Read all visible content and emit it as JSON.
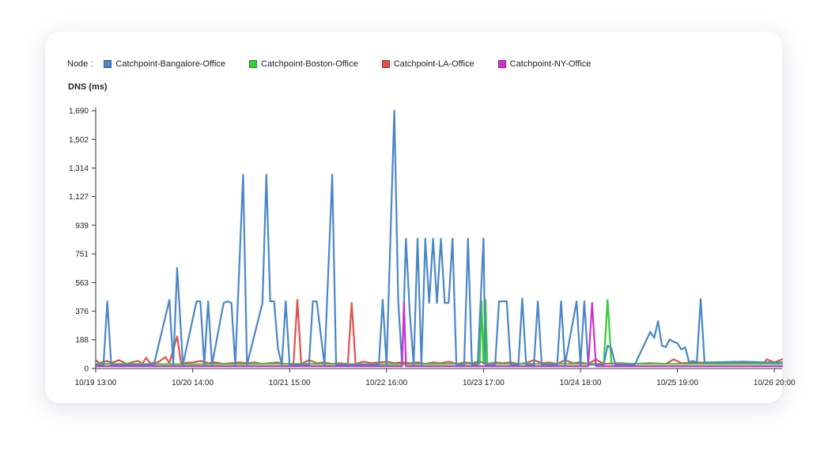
{
  "legend": {
    "title": "Node :",
    "items": [
      {
        "label": "Catchpoint-Bangalore-Office",
        "color": "#4a86c8"
      },
      {
        "label": "Catchpoint-Boston-Office",
        "color": "#33cc33"
      },
      {
        "label": "Catchpoint-LA-Office",
        "color": "#e0504a"
      },
      {
        "label": "Catchpoint-NY-Office",
        "color": "#cc33cc"
      }
    ]
  },
  "chart_data": {
    "type": "line",
    "title": "",
    "xlabel": "",
    "ylabel": "DNS (ms)",
    "ylim": [
      0,
      1690
    ],
    "xlim": [
      "10/19 13:00",
      "10/26 22:00"
    ],
    "y_ticks": [
      0,
      188,
      376,
      563,
      751,
      939,
      1127,
      1314,
      1502,
      1690
    ],
    "y_tick_labels": [
      "0",
      "188",
      "376",
      "563",
      "751",
      "939",
      "1,127",
      "1,314",
      "1,502",
      "1,690"
    ],
    "x_ticks": [
      "10/19 13:00",
      "10/20 14:00",
      "10/21 15:00",
      "10/22 16:00",
      "10/23 17:00",
      "10/24 18:00",
      "10/25 19:00",
      "10/26 20:00"
    ],
    "legend_position": "top",
    "grid": false,
    "series": [
      {
        "name": "Catchpoint-Bangalore-Office",
        "color": "#4a86c8",
        "points": [
          [
            "10/19 13:00",
            25
          ],
          [
            "10/19 15:00",
            20
          ],
          [
            "10/19 16:00",
            440
          ],
          [
            "10/19 17:00",
            25
          ],
          [
            "10/19 22:00",
            25
          ],
          [
            "10/20 04:00",
            25
          ],
          [
            "10/20 08:00",
            450
          ],
          [
            "10/20 09:00",
            25
          ],
          [
            "10/20 10:00",
            660
          ],
          [
            "10/20 11:30",
            25
          ],
          [
            "10/20 15:00",
            440
          ],
          [
            "10/20 16:00",
            440
          ],
          [
            "10/20 17:00",
            25
          ],
          [
            "10/20 18:00",
            440
          ],
          [
            "10/20 19:00",
            25
          ],
          [
            "10/20 22:00",
            430
          ],
          [
            "10/20 23:00",
            440
          ],
          [
            "10/21 00:00",
            430
          ],
          [
            "10/21 01:00",
            25
          ],
          [
            "10/21 03:00",
            1270
          ],
          [
            "10/21 04:00",
            25
          ],
          [
            "10/21 08:00",
            430
          ],
          [
            "10/21 09:00",
            1270
          ],
          [
            "10/21 10:00",
            440
          ],
          [
            "10/21 11:00",
            440
          ],
          [
            "10/21 12:00",
            130
          ],
          [
            "10/21 13:00",
            25
          ],
          [
            "10/21 14:00",
            440
          ],
          [
            "10/21 15:00",
            25
          ],
          [
            "10/21 20:00",
            25
          ],
          [
            "10/21 21:00",
            440
          ],
          [
            "10/21 22:00",
            440
          ],
          [
            "10/22 00:00",
            25
          ],
          [
            "10/22 02:00",
            1270
          ],
          [
            "10/22 03:00",
            25
          ],
          [
            "10/22 10:00",
            25
          ],
          [
            "10/22 14:00",
            25
          ],
          [
            "10/22 15:00",
            450
          ],
          [
            "10/22 16:00",
            25
          ],
          [
            "10/22 18:00",
            1690
          ],
          [
            "10/22 19:00",
            450
          ],
          [
            "10/22 20:00",
            25
          ],
          [
            "10/22 21:00",
            850
          ],
          [
            "10/22 22:00",
            360
          ],
          [
            "10/22 23:00",
            25
          ],
          [
            "10/23 00:00",
            850
          ],
          [
            "10/23 01:00",
            25
          ],
          [
            "10/23 02:00",
            850
          ],
          [
            "10/23 03:00",
            430
          ],
          [
            "10/23 04:00",
            850
          ],
          [
            "10/23 05:00",
            430
          ],
          [
            "10/23 06:00",
            850
          ],
          [
            "10/23 07:00",
            430
          ],
          [
            "10/23 08:00",
            430
          ],
          [
            "10/23 09:00",
            850
          ],
          [
            "10/23 10:00",
            25
          ],
          [
            "10/23 12:00",
            25
          ],
          [
            "10/23 13:00",
            850
          ],
          [
            "10/23 14:00",
            25
          ],
          [
            "10/23 15:30",
            25
          ],
          [
            "10/23 17:00",
            850
          ],
          [
            "10/23 17:30",
            25
          ],
          [
            "10/23 18:00",
            25
          ],
          [
            "10/23 20:00",
            25
          ],
          [
            "10/23 21:00",
            440
          ],
          [
            "10/23 22:00",
            440
          ],
          [
            "10/23 23:00",
            440
          ],
          [
            "10/24 00:00",
            25
          ],
          [
            "10/24 02:00",
            25
          ],
          [
            "10/24 03:00",
            460
          ],
          [
            "10/24 04:00",
            25
          ],
          [
            "10/24 06:00",
            25
          ],
          [
            "10/24 07:00",
            440
          ],
          [
            "10/24 08:00",
            25
          ],
          [
            "10/24 12:00",
            25
          ],
          [
            "10/24 13:00",
            440
          ],
          [
            "10/24 14:00",
            25
          ],
          [
            "10/24 17:00",
            440
          ],
          [
            "10/24 18:00",
            25
          ],
          [
            "10/24 19:00",
            440
          ],
          [
            "10/24 20:00",
            25
          ],
          [
            "10/24 22:00",
            25
          ],
          [
            "10/25 00:00",
            25
          ],
          [
            "10/25 01:00",
            150
          ],
          [
            "10/25 02:00",
            130
          ],
          [
            "10/25 03:00",
            25
          ],
          [
            "10/25 08:00",
            25
          ],
          [
            "10/25 12:00",
            240
          ],
          [
            "10/25 13:00",
            200
          ],
          [
            "10/25 14:00",
            310
          ],
          [
            "10/25 15:00",
            150
          ],
          [
            "10/25 16:00",
            140
          ],
          [
            "10/25 17:00",
            190
          ],
          [
            "10/25 18:00",
            175
          ],
          [
            "10/25 19:00",
            165
          ],
          [
            "10/25 20:00",
            125
          ],
          [
            "10/25 21:00",
            140
          ],
          [
            "10/25 22:00",
            40
          ],
          [
            "10/25 23:00",
            50
          ],
          [
            "10/26 00:00",
            40
          ],
          [
            "10/26 01:00",
            455
          ],
          [
            "10/26 02:00",
            40
          ],
          [
            "10/26 03:00",
            40
          ],
          [
            "10/26 12:00",
            45
          ],
          [
            "10/26 18:00",
            40
          ],
          [
            "10/26 19:00",
            40
          ],
          [
            "10/26 22:00",
            40
          ]
        ]
      },
      {
        "name": "Catchpoint-Boston-Office",
        "color": "#33cc33",
        "points": [
          [
            "10/19 13:00",
            30
          ],
          [
            "10/20 13:00",
            28
          ],
          [
            "10/21 13:00",
            30
          ],
          [
            "10/22 13:00",
            28
          ],
          [
            "10/23 13:00",
            30
          ],
          [
            "10/23 16:00",
            30
          ],
          [
            "10/23 16:30",
            440
          ],
          [
            "10/23 17:00",
            30
          ],
          [
            "10/23 17:30",
            450
          ],
          [
            "10/23 18:00",
            30
          ],
          [
            "10/24 13:00",
            30
          ],
          [
            "10/24 23:00",
            30
          ],
          [
            "10/25 00:00",
            30
          ],
          [
            "10/25 01:00",
            450
          ],
          [
            "10/25 02:00",
            30
          ],
          [
            "10/25 13:00",
            30
          ],
          [
            "10/26 13:00",
            30
          ],
          [
            "10/26 22:00",
            30
          ]
        ]
      },
      {
        "name": "Catchpoint-LA-Office",
        "color": "#e0504a",
        "points": [
          [
            "10/19 13:00",
            55
          ],
          [
            "10/19 14:00",
            35
          ],
          [
            "10/19 16:00",
            50
          ],
          [
            "10/19 17:00",
            35
          ],
          [
            "10/19 19:00",
            55
          ],
          [
            "10/19 21:00",
            30
          ],
          [
            "10/19 23:00",
            45
          ],
          [
            "10/20 00:00",
            50
          ],
          [
            "10/20 01:00",
            30
          ],
          [
            "10/20 02:00",
            70
          ],
          [
            "10/20 03:00",
            35
          ],
          [
            "10/20 05:00",
            40
          ],
          [
            "10/20 07:00",
            75
          ],
          [
            "10/20 08:00",
            35
          ],
          [
            "10/20 10:00",
            210
          ],
          [
            "10/20 11:00",
            35
          ],
          [
            "10/20 14:00",
            40
          ],
          [
            "10/20 16:00",
            50
          ],
          [
            "10/20 18:00",
            35
          ],
          [
            "10/20 20:00",
            40
          ],
          [
            "10/20 22:00",
            30
          ],
          [
            "10/21 00:00",
            35
          ],
          [
            "10/21 02:00",
            40
          ],
          [
            "10/21 04:00",
            35
          ],
          [
            "10/21 06:00",
            40
          ],
          [
            "10/21 08:00",
            30
          ],
          [
            "10/21 10:00",
            35
          ],
          [
            "10/21 12:00",
            40
          ],
          [
            "10/21 13:00",
            30
          ],
          [
            "10/21 16:00",
            30
          ],
          [
            "10/21 17:00",
            450
          ],
          [
            "10/21 18:00",
            30
          ],
          [
            "10/21 20:00",
            55
          ],
          [
            "10/21 22:00",
            35
          ],
          [
            "10/22 00:00",
            40
          ],
          [
            "10/22 02:00",
            30
          ],
          [
            "10/22 04:00",
            35
          ],
          [
            "10/22 06:00",
            30
          ],
          [
            "10/22 07:00",
            430
          ],
          [
            "10/22 08:00",
            30
          ],
          [
            "10/22 10:00",
            45
          ],
          [
            "10/22 12:00",
            35
          ],
          [
            "10/22 14:00",
            40
          ],
          [
            "10/22 16:00",
            45
          ],
          [
            "10/22 18:00",
            35
          ],
          [
            "10/22 20:00",
            40
          ],
          [
            "10/22 22:00",
            35
          ],
          [
            "10/23 00:00",
            40
          ],
          [
            "10/23 02:00",
            30
          ],
          [
            "10/23 04:00",
            40
          ],
          [
            "10/23 06:00",
            35
          ],
          [
            "10/23 08:00",
            45
          ],
          [
            "10/23 10:00",
            30
          ],
          [
            "10/23 12:00",
            40
          ],
          [
            "10/23 14:00",
            35
          ],
          [
            "10/23 16:00",
            45
          ],
          [
            "10/23 18:00",
            30
          ],
          [
            "10/23 20:00",
            40
          ],
          [
            "10/23 22:00",
            35
          ],
          [
            "10/24 00:00",
            40
          ],
          [
            "10/24 02:00",
            30
          ],
          [
            "10/24 04:00",
            35
          ],
          [
            "10/24 06:00",
            55
          ],
          [
            "10/24 08:00",
            35
          ],
          [
            "10/24 10:00",
            40
          ],
          [
            "10/24 12:00",
            30
          ],
          [
            "10/24 14:00",
            55
          ],
          [
            "10/24 16:00",
            35
          ],
          [
            "10/24 18:00",
            40
          ],
          [
            "10/24 20:00",
            30
          ],
          [
            "10/24 22:00",
            60
          ],
          [
            "10/25 00:00",
            30
          ],
          [
            "10/25 04:00",
            35
          ],
          [
            "10/25 08:00",
            30
          ],
          [
            "10/25 12:00",
            35
          ],
          [
            "10/25 16:00",
            30
          ],
          [
            "10/25 18:00",
            60
          ],
          [
            "10/25 20:00",
            35
          ],
          [
            "10/26 00:00",
            40
          ],
          [
            "10/26 04:00",
            35
          ],
          [
            "10/26 08:00",
            40
          ],
          [
            "10/26 12:00",
            35
          ],
          [
            "10/26 16:00",
            40
          ],
          [
            "10/26 17:30",
            40
          ],
          [
            "10/26 18:00",
            60
          ],
          [
            "10/26 20:00",
            40
          ],
          [
            "10/26 22:00",
            60
          ]
        ]
      },
      {
        "name": "Catchpoint-NY-Office",
        "color": "#cc33cc",
        "points": [
          [
            "10/19 13:00",
            15
          ],
          [
            "10/20 13:00",
            15
          ],
          [
            "10/21 13:00",
            15
          ],
          [
            "10/22 13:00",
            15
          ],
          [
            "10/22 20:00",
            15
          ],
          [
            "10/22 20:30",
            430
          ],
          [
            "10/22 21:00",
            15
          ],
          [
            "10/23 13:00",
            15
          ],
          [
            "10/24 13:00",
            15
          ],
          [
            "10/24 20:00",
            15
          ],
          [
            "10/24 21:00",
            430
          ],
          [
            "10/24 22:00",
            15
          ],
          [
            "10/25 13:00",
            15
          ],
          [
            "10/26 13:00",
            15
          ],
          [
            "10/26 22:00",
            15
          ]
        ]
      }
    ]
  }
}
